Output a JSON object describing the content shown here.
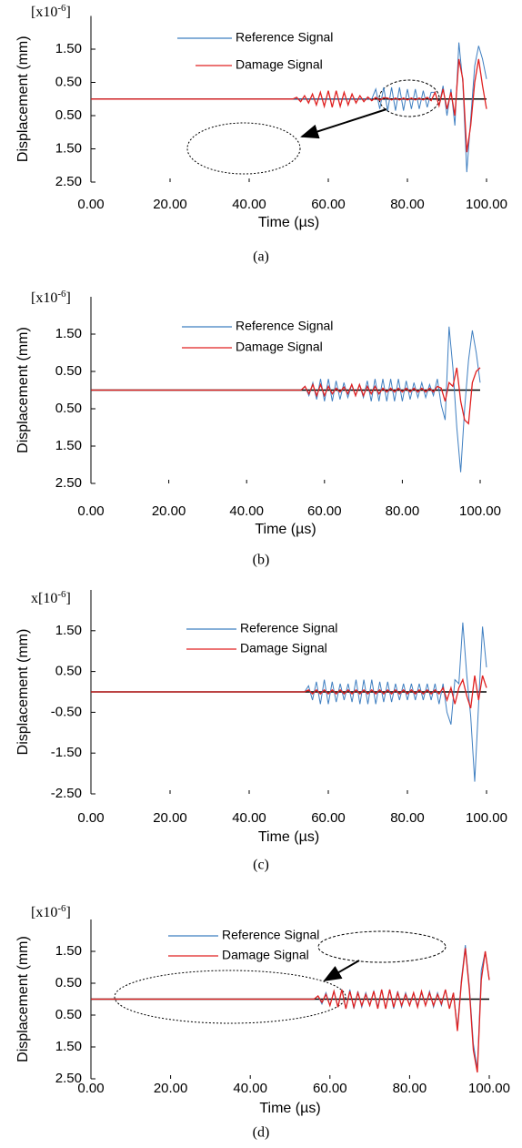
{
  "chart_data": [
    {
      "type": "line",
      "x_label": "Time (µs)",
      "y_label": "Displacement (mm)",
      "caption": "(a)",
      "scale_label": {
        "prefix": "[x10",
        "exponent": "-6",
        "suffix": "]"
      },
      "xlim": [
        0,
        100
      ],
      "ylim": [
        -2.5,
        2.5
      ],
      "xticks": [
        {
          "value": 0,
          "label": "0.00"
        },
        {
          "value": 20,
          "label": "20.00"
        },
        {
          "value": 40,
          "label": "40.00"
        },
        {
          "value": 60,
          "label": "60.00"
        },
        {
          "value": 80,
          "label": "80.00"
        },
        {
          "value": 100,
          "label": "100.00"
        }
      ],
      "yticks": [
        {
          "value": 1.5,
          "label": "1.50"
        },
        {
          "value": 0.5,
          "label": "0.50"
        },
        {
          "value": -0.5,
          "label": "0.50"
        },
        {
          "value": -1.5,
          "label": "1.50"
        },
        {
          "value": -2.5,
          "label": "2.50"
        }
      ],
      "x": [
        0,
        45,
        46,
        47,
        48,
        49,
        50,
        51,
        52,
        53,
        54,
        55,
        56,
        57,
        58,
        59,
        60,
        61,
        62,
        63,
        64,
        65,
        66,
        67,
        68,
        69,
        70,
        71,
        72,
        73,
        74,
        75,
        76,
        77,
        78,
        79,
        80,
        81,
        82,
        83,
        84,
        85,
        86,
        87,
        88,
        89,
        90,
        91,
        92,
        93,
        94,
        95,
        96,
        97,
        98,
        99,
        100
      ],
      "series": [
        {
          "name": "Reference Signal",
          "color": "#3f7fc1",
          "values": [
            0,
            0,
            0,
            0,
            0,
            0,
            0,
            0,
            0,
            0,
            0,
            0,
            0,
            0,
            0,
            0,
            0,
            0,
            0,
            0,
            0,
            0,
            0,
            0,
            0,
            0,
            0,
            0,
            0.3,
            -0.3,
            0.35,
            -0.35,
            0.35,
            -0.35,
            0.35,
            -0.35,
            0.3,
            -0.3,
            0.3,
            -0.3,
            0.25,
            -0.25,
            0.2,
            0.2,
            -0.2,
            0.4,
            -0.5,
            0.3,
            -0.8,
            1.7,
            0.5,
            -2.2,
            -0.6,
            1.0,
            1.6,
            1.2,
            0.6
          ]
        },
        {
          "name": "Damage Signal",
          "color": "#e02020",
          "values": [
            0,
            0,
            0,
            0,
            0,
            0,
            0,
            0,
            0.05,
            -0.08,
            0.1,
            -0.12,
            0.15,
            -0.18,
            0.2,
            -0.22,
            0.25,
            -0.25,
            0.25,
            -0.22,
            0.2,
            -0.18,
            0.15,
            -0.12,
            0.1,
            -0.08,
            0.06,
            -0.05,
            0.05,
            -0.04,
            0.04,
            0.03,
            -0.03,
            0.03,
            -0.03,
            0.03,
            -0.03,
            0.03,
            -0.03,
            0.03,
            -0.03,
            0.05,
            -0.05,
            0.2,
            -0.2,
            0.3,
            -0.3,
            0.2,
            -0.5,
            1.2,
            0.6,
            -1.6,
            -0.8,
            0.5,
            1.2,
            0.4,
            -0.3
          ]
        }
      ]
    },
    {
      "type": "line",
      "x_label": "Time (µs)",
      "y_label": "Displacement (mm)",
      "caption": "(b)",
      "scale_label": {
        "prefix": "[x10",
        "exponent": "-6",
        "suffix": "]"
      },
      "xlim": [
        0,
        100
      ],
      "ylim": [
        -2.5,
        2.5
      ],
      "xticks": [
        {
          "value": 0,
          "label": "0.00"
        },
        {
          "value": 20,
          "label": "20.00"
        },
        {
          "value": 40,
          "label": "40.00"
        },
        {
          "value": 60,
          "label": "60.00"
        },
        {
          "value": 80,
          "label": "80.00"
        },
        {
          "value": 100,
          "label": "100.00"
        }
      ],
      "yticks": [
        {
          "value": 1.5,
          "label": "1.50"
        },
        {
          "value": 0.5,
          "label": "0.50"
        },
        {
          "value": -0.5,
          "label": "0.50"
        },
        {
          "value": -1.5,
          "label": "1.50"
        },
        {
          "value": -2.5,
          "label": "2.50"
        }
      ],
      "x": [
        0,
        45,
        46,
        47,
        48,
        49,
        50,
        51,
        52,
        53,
        54,
        55,
        56,
        57,
        58,
        59,
        60,
        61,
        62,
        63,
        64,
        65,
        66,
        67,
        68,
        69,
        70,
        71,
        72,
        73,
        74,
        75,
        76,
        77,
        78,
        79,
        80,
        81,
        82,
        83,
        84,
        85,
        86,
        87,
        88,
        89,
        90,
        91,
        92,
        93,
        94,
        95,
        96,
        97,
        98,
        99,
        100
      ],
      "series": [
        {
          "name": "Reference Signal",
          "color": "#3f7fc1",
          "values": [
            0,
            0,
            0,
            0,
            0,
            0,
            0,
            0,
            0,
            0,
            0,
            0.1,
            -0.15,
            0.2,
            -0.25,
            0.3,
            -0.3,
            0.3,
            -0.3,
            0.25,
            -0.25,
            0.2,
            -0.2,
            0.15,
            -0.15,
            0.15,
            -0.2,
            0.25,
            -0.3,
            0.3,
            -0.3,
            0.3,
            -0.3,
            0.3,
            -0.3,
            0.3,
            -0.3,
            0.25,
            -0.25,
            0.2,
            -0.2,
            0.2,
            -0.2,
            0.15,
            -0.15,
            0.3,
            -0.4,
            -0.8,
            1.7,
            0.6,
            -1.0,
            -2.2,
            -0.5,
            0.8,
            1.6,
            1.0,
            0.2
          ]
        },
        {
          "name": "Damage Signal",
          "color": "#e02020",
          "values": [
            0,
            0,
            0,
            0,
            0,
            0,
            0,
            0,
            0,
            0,
            0,
            0.1,
            -0.1,
            0.15,
            -0.15,
            0.15,
            -0.15,
            0.1,
            -0.1,
            0.05,
            -0.05,
            0.08,
            -0.1,
            0.15,
            -0.15,
            0.15,
            -0.15,
            0.1,
            -0.1,
            0.1,
            -0.1,
            0.05,
            -0.05,
            0.05,
            -0.05,
            0.05,
            -0.05,
            0.05,
            -0.05,
            0.05,
            -0.05,
            0.05,
            -0.05,
            0.05,
            -0.05,
            0.1,
            0.05,
            -0.3,
            0.2,
            0.1,
            0.6,
            -0.3,
            -0.8,
            -0.9,
            0.2,
            0.5,
            0.6
          ]
        }
      ]
    },
    {
      "type": "line",
      "x_label": "Time (µs)",
      "y_label": "Displacement (mm)",
      "caption": "(c)",
      "scale_label": {
        "prefix": "x[10",
        "exponent": "-6",
        "suffix": "]"
      },
      "xlim": [
        0,
        100
      ],
      "ylim": [
        -2.5,
        2.5
      ],
      "xticks": [
        {
          "value": 0,
          "label": "0.00"
        },
        {
          "value": 20,
          "label": "20.00"
        },
        {
          "value": 40,
          "label": "40.00"
        },
        {
          "value": 60,
          "label": "60.00"
        },
        {
          "value": 80,
          "label": "80.00"
        },
        {
          "value": 100,
          "label": "100.00"
        }
      ],
      "yticks": [
        {
          "value": 1.5,
          "label": "1.50"
        },
        {
          "value": 0.5,
          "label": "0.50"
        },
        {
          "value": -0.5,
          "label": "-0.50"
        },
        {
          "value": -1.5,
          "label": "-1.50"
        },
        {
          "value": -2.5,
          "label": "-2.50"
        }
      ],
      "x": [
        0,
        45,
        46,
        47,
        48,
        49,
        50,
        51,
        52,
        53,
        54,
        55,
        56,
        57,
        58,
        59,
        60,
        61,
        62,
        63,
        64,
        65,
        66,
        67,
        68,
        69,
        70,
        71,
        72,
        73,
        74,
        75,
        76,
        77,
        78,
        79,
        80,
        81,
        82,
        83,
        84,
        85,
        86,
        87,
        88,
        89,
        90,
        91,
        92,
        93,
        94,
        95,
        96,
        97,
        98,
        99,
        100
      ],
      "series": [
        {
          "name": "Reference Signal",
          "color": "#3f7fc1",
          "values": [
            0,
            0,
            0,
            0,
            0,
            0,
            0,
            0,
            0,
            0,
            0,
            0.15,
            -0.2,
            0.25,
            -0.3,
            0.3,
            -0.3,
            0.25,
            -0.25,
            0.2,
            -0.2,
            0.2,
            -0.25,
            0.3,
            -0.3,
            0.3,
            -0.3,
            0.3,
            -0.3,
            0.25,
            -0.25,
            0.25,
            -0.25,
            0.2,
            -0.2,
            0.2,
            -0.2,
            0.2,
            -0.2,
            0.2,
            -0.2,
            0.2,
            -0.2,
            0.2,
            -0.3,
            0.2,
            -0.5,
            -0.8,
            0.3,
            0.2,
            1.7,
            0.4,
            -0.6,
            -2.2,
            -0.3,
            1.6,
            0.6
          ]
        },
        {
          "name": "Damage Signal",
          "color": "#e02020",
          "values": [
            0,
            0,
            0,
            0,
            0,
            0,
            0,
            0,
            0,
            0,
            0,
            0.05,
            -0.05,
            0.05,
            -0.05,
            0.05,
            -0.05,
            0.05,
            -0.05,
            0.05,
            -0.05,
            0.05,
            -0.05,
            0.05,
            -0.05,
            0.05,
            -0.05,
            0.05,
            -0.05,
            0.05,
            -0.05,
            0.05,
            -0.05,
            0.05,
            -0.05,
            0.05,
            -0.05,
            0.05,
            -0.05,
            0.05,
            -0.05,
            0.05,
            -0.05,
            0.05,
            -0.05,
            0.1,
            -0.2,
            0.1,
            -0.3,
            0.1,
            0.3,
            -0.1,
            -0.4,
            0.4,
            -0.2,
            0.4,
            0.1
          ]
        }
      ]
    },
    {
      "type": "line",
      "x_label": "Time (µs)",
      "y_label": "Displacement (mm)",
      "caption": "(d)",
      "scale_label": {
        "prefix": "[x10",
        "exponent": "-6",
        "suffix": "]"
      },
      "xlim": [
        0,
        100
      ],
      "ylim": [
        -2.5,
        2.5
      ],
      "xticks": [
        {
          "value": 0,
          "label": "0.00"
        },
        {
          "value": 20,
          "label": "20.00"
        },
        {
          "value": 40,
          "label": "40.00"
        },
        {
          "value": 60,
          "label": "60.00"
        },
        {
          "value": 80,
          "label": "80.00"
        },
        {
          "value": 100,
          "label": "100.00"
        }
      ],
      "yticks": [
        {
          "value": 1.5,
          "label": "1.50"
        },
        {
          "value": 0.5,
          "label": "0.50"
        },
        {
          "value": -0.5,
          "label": "0.50"
        },
        {
          "value": -1.5,
          "label": "1.50"
        },
        {
          "value": -2.5,
          "label": "2.50"
        }
      ],
      "x": [
        0,
        45,
        46,
        47,
        48,
        49,
        50,
        51,
        52,
        53,
        54,
        55,
        56,
        57,
        58,
        59,
        60,
        61,
        62,
        63,
        64,
        65,
        66,
        67,
        68,
        69,
        70,
        71,
        72,
        73,
        74,
        75,
        76,
        77,
        78,
        79,
        80,
        81,
        82,
        83,
        84,
        85,
        86,
        87,
        88,
        89,
        90,
        91,
        92,
        93,
        94,
        95,
        96,
        97,
        98,
        99,
        100
      ],
      "series": [
        {
          "name": "Reference Signal",
          "color": "#3f7fc1",
          "values": [
            0,
            0,
            0,
            0,
            0,
            0,
            0,
            0,
            0,
            0,
            0,
            0,
            0,
            0.1,
            -0.15,
            0.2,
            -0.2,
            0.25,
            -0.25,
            0.3,
            -0.3,
            0.3,
            -0.3,
            0.25,
            -0.25,
            0.2,
            -0.2,
            0.25,
            -0.25,
            0.3,
            -0.3,
            0.3,
            -0.3,
            0.25,
            -0.25,
            0.2,
            -0.2,
            0.2,
            -0.2,
            0.2,
            -0.2,
            0.25,
            -0.25,
            0.2,
            -0.2,
            0.3,
            -0.3,
            0.2,
            -0.9,
            0.6,
            1.7,
            0.4,
            -1.4,
            -2.2,
            0.9,
            1.5,
            0.6
          ]
        },
        {
          "name": "Damage Signal",
          "color": "#e02020",
          "values": [
            0,
            0,
            0,
            0,
            0,
            0,
            0,
            0,
            0,
            0,
            0,
            0,
            0,
            0.1,
            -0.1,
            0.15,
            -0.2,
            0.25,
            -0.25,
            0.3,
            -0.3,
            0.25,
            -0.25,
            0.2,
            -0.2,
            0.15,
            -0.2,
            0.25,
            -0.3,
            0.3,
            -0.3,
            0.3,
            -0.25,
            0.2,
            -0.2,
            0.15,
            -0.2,
            0.2,
            -0.25,
            0.25,
            -0.2,
            0.2,
            -0.2,
            0.15,
            -0.15,
            0.3,
            -0.3,
            0.2,
            -1.0,
            0.5,
            1.6,
            0.3,
            -1.6,
            -2.3,
            0.6,
            1.5,
            0.6
          ]
        }
      ]
    }
  ]
}
